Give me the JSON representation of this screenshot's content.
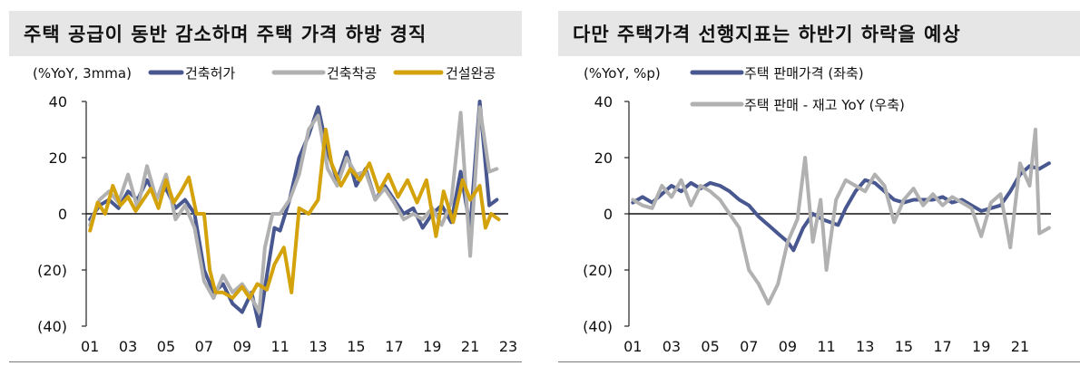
{
  "colors": {
    "navy": "#48578f",
    "gray": "#b1b1b1",
    "gold": "#d4a20a",
    "title_bg": "#e7e6e6"
  },
  "chart_data": [
    {
      "type": "line",
      "title": "주택 공급이 동반 감소하며 주택 가격 하방 경직",
      "unit_label": "(%YoY, 3mma)",
      "yticks": [
        "40",
        "20",
        "0",
        "(20)",
        "(40)"
      ],
      "ylim": [
        -40,
        40
      ],
      "xticks": [
        "01",
        "03",
        "05",
        "07",
        "09",
        "11",
        "13",
        "15",
        "17",
        "19",
        "21",
        "23"
      ],
      "xlim": [
        2000.8,
        2023.0
      ],
      "grid": false,
      "legend_position": "top",
      "series": [
        {
          "name": "건축허가",
          "color": "navy",
          "axis": "left",
          "points": [
            [
              2001.0,
              -2
            ],
            [
              2001.5,
              3
            ],
            [
              2002.0,
              5
            ],
            [
              2002.5,
              2
            ],
            [
              2003.0,
              8
            ],
            [
              2003.5,
              5
            ],
            [
              2004.0,
              12
            ],
            [
              2004.5,
              6
            ],
            [
              2005.0,
              9
            ],
            [
              2005.5,
              2
            ],
            [
              2006.0,
              5
            ],
            [
              2006.5,
              0
            ],
            [
              2007.0,
              -20
            ],
            [
              2007.5,
              -28
            ],
            [
              2008.0,
              -25
            ],
            [
              2008.5,
              -32
            ],
            [
              2009.0,
              -35
            ],
            [
              2009.5,
              -28
            ],
            [
              2009.9,
              -40
            ],
            [
              2010.3,
              -22
            ],
            [
              2010.7,
              -5
            ],
            [
              2011.0,
              -6
            ],
            [
              2011.5,
              5
            ],
            [
              2012.0,
              20
            ],
            [
              2012.5,
              28
            ],
            [
              2013.0,
              38
            ],
            [
              2013.5,
              22
            ],
            [
              2014.0,
              12
            ],
            [
              2014.5,
              22
            ],
            [
              2015.0,
              10
            ],
            [
              2015.5,
              16
            ],
            [
              2016.0,
              5
            ],
            [
              2016.5,
              10
            ],
            [
              2017.0,
              5
            ],
            [
              2017.5,
              0
            ],
            [
              2018.0,
              2
            ],
            [
              2018.5,
              -5
            ],
            [
              2019.0,
              0
            ],
            [
              2019.5,
              3
            ],
            [
              2020.0,
              -3
            ],
            [
              2020.5,
              15
            ],
            [
              2021.0,
              -5
            ],
            [
              2021.5,
              40
            ],
            [
              2022.0,
              3
            ],
            [
              2022.4,
              5
            ]
          ]
        },
        {
          "name": "건축착공",
          "color": "gray",
          "axis": "left",
          "points": [
            [
              2001.0,
              -4
            ],
            [
              2001.5,
              5
            ],
            [
              2002.0,
              8
            ],
            [
              2002.5,
              4
            ],
            [
              2003.0,
              14
            ],
            [
              2003.5,
              2
            ],
            [
              2004.0,
              17
            ],
            [
              2004.5,
              5
            ],
            [
              2005.0,
              14
            ],
            [
              2005.5,
              -2
            ],
            [
              2006.0,
              3
            ],
            [
              2006.5,
              -5
            ],
            [
              2007.0,
              -24
            ],
            [
              2007.5,
              -30
            ],
            [
              2008.0,
              -22
            ],
            [
              2008.5,
              -28
            ],
            [
              2009.0,
              -25
            ],
            [
              2009.5,
              -30
            ],
            [
              2009.9,
              -35
            ],
            [
              2010.2,
              -12
            ],
            [
              2010.6,
              0
            ],
            [
              2011.0,
              0
            ],
            [
              2011.5,
              5
            ],
            [
              2012.0,
              14
            ],
            [
              2012.5,
              30
            ],
            [
              2013.0,
              35
            ],
            [
              2013.5,
              16
            ],
            [
              2014.0,
              10
            ],
            [
              2014.5,
              20
            ],
            [
              2015.0,
              14
            ],
            [
              2015.5,
              15
            ],
            [
              2016.0,
              5
            ],
            [
              2016.5,
              9
            ],
            [
              2017.0,
              4
            ],
            [
              2017.5,
              -2
            ],
            [
              2018.0,
              0
            ],
            [
              2018.5,
              -2
            ],
            [
              2019.0,
              2
            ],
            [
              2019.5,
              -4
            ],
            [
              2020.0,
              4
            ],
            [
              2020.5,
              36
            ],
            [
              2021.0,
              -15
            ],
            [
              2021.5,
              38
            ],
            [
              2022.0,
              15
            ],
            [
              2022.4,
              16
            ]
          ]
        },
        {
          "name": "건설완공",
          "color": "gold",
          "axis": "left",
          "points": [
            [
              2001.0,
              -6
            ],
            [
              2001.4,
              4
            ],
            [
              2001.8,
              0
            ],
            [
              2002.2,
              10
            ],
            [
              2002.6,
              3
            ],
            [
              2003.0,
              6
            ],
            [
              2003.4,
              1
            ],
            [
              2003.8,
              5
            ],
            [
              2004.2,
              9
            ],
            [
              2004.6,
              2
            ],
            [
              2005.0,
              12
            ],
            [
              2005.4,
              4
            ],
            [
              2005.8,
              8
            ],
            [
              2006.2,
              13
            ],
            [
              2006.6,
              0
            ],
            [
              2007.0,
              0
            ],
            [
              2007.3,
              -20
            ],
            [
              2007.6,
              -28
            ],
            [
              2008.0,
              -28
            ],
            [
              2008.5,
              -30
            ],
            [
              2009.0,
              -26
            ],
            [
              2009.4,
              -30
            ],
            [
              2009.8,
              -25
            ],
            [
              2010.3,
              -27
            ],
            [
              2010.7,
              -18
            ],
            [
              2011.2,
              -12
            ],
            [
              2011.6,
              -28
            ],
            [
              2012.0,
              2
            ],
            [
              2012.5,
              0
            ],
            [
              2013.0,
              5
            ],
            [
              2013.4,
              30
            ],
            [
              2013.7,
              18
            ],
            [
              2014.2,
              10
            ],
            [
              2014.7,
              16
            ],
            [
              2015.2,
              12
            ],
            [
              2015.7,
              18
            ],
            [
              2016.2,
              8
            ],
            [
              2016.7,
              14
            ],
            [
              2017.2,
              6
            ],
            [
              2017.7,
              12
            ],
            [
              2018.2,
              4
            ],
            [
              2018.7,
              12
            ],
            [
              2019.2,
              -8
            ],
            [
              2019.6,
              8
            ],
            [
              2020.1,
              -3
            ],
            [
              2020.6,
              12
            ],
            [
              2021.0,
              5
            ],
            [
              2021.5,
              10
            ],
            [
              2021.8,
              -5
            ],
            [
              2022.1,
              0
            ],
            [
              2022.5,
              -2
            ]
          ]
        }
      ]
    },
    {
      "type": "line",
      "title": "다만 주택가격 선행지표는 하반기 하락을 예상",
      "unit_label": "(%YoY, %p)",
      "yticks": [
        "40",
        "20",
        "0",
        "(20)",
        "(40)"
      ],
      "ylim": [
        -40,
        40
      ],
      "xticks": [
        "01",
        "03",
        "05",
        "07",
        "09",
        "11",
        "13",
        "15",
        "17",
        "19",
        "21"
      ],
      "xlim": [
        2000.8,
        2022.6
      ],
      "grid": false,
      "legend_position": "top",
      "series": [
        {
          "name": "주택 판매가격 (좌축)",
          "color": "navy",
          "axis": "left",
          "points": [
            [
              2001.0,
              4
            ],
            [
              2001.5,
              6
            ],
            [
              2002.0,
              4
            ],
            [
              2002.5,
              7
            ],
            [
              2003.0,
              10
            ],
            [
              2003.5,
              8
            ],
            [
              2004.0,
              11
            ],
            [
              2004.5,
              9
            ],
            [
              2005.0,
              11
            ],
            [
              2005.5,
              10
            ],
            [
              2006.0,
              8
            ],
            [
              2006.5,
              5
            ],
            [
              2007.0,
              3
            ],
            [
              2007.5,
              -1
            ],
            [
              2008.0,
              -4
            ],
            [
              2008.5,
              -7
            ],
            [
              2009.0,
              -10
            ],
            [
              2009.3,
              -13
            ],
            [
              2009.8,
              -5
            ],
            [
              2010.3,
              0
            ],
            [
              2010.8,
              -2
            ],
            [
              2011.2,
              -3
            ],
            [
              2011.6,
              -4
            ],
            [
              2012.0,
              2
            ],
            [
              2012.5,
              8
            ],
            [
              2013.0,
              12
            ],
            [
              2013.5,
              11
            ],
            [
              2014.0,
              8
            ],
            [
              2014.5,
              5
            ],
            [
              2015.0,
              4
            ],
            [
              2015.5,
              5
            ],
            [
              2016.0,
              5
            ],
            [
              2016.5,
              5
            ],
            [
              2017.0,
              6
            ],
            [
              2017.5,
              4
            ],
            [
              2018.0,
              5
            ],
            [
              2018.5,
              3
            ],
            [
              2019.0,
              1
            ],
            [
              2019.5,
              2
            ],
            [
              2020.0,
              3
            ],
            [
              2020.5,
              8
            ],
            [
              2021.0,
              14
            ],
            [
              2021.5,
              17
            ],
            [
              2022.0,
              16
            ],
            [
              2022.5,
              18
            ]
          ]
        },
        {
          "name": "주택 판매 - 재고 YoY (우축)",
          "color": "gray",
          "axis": "right",
          "points": [
            [
              2001.0,
              5
            ],
            [
              2001.5,
              3
            ],
            [
              2002.0,
              2
            ],
            [
              2002.5,
              10
            ],
            [
              2003.0,
              6
            ],
            [
              2003.5,
              12
            ],
            [
              2004.0,
              3
            ],
            [
              2004.5,
              10
            ],
            [
              2005.0,
              8
            ],
            [
              2005.5,
              5
            ],
            [
              2006.0,
              0
            ],
            [
              2006.5,
              -5
            ],
            [
              2007.0,
              -20
            ],
            [
              2007.5,
              -25
            ],
            [
              2008.0,
              -32
            ],
            [
              2008.5,
              -25
            ],
            [
              2009.0,
              -10
            ],
            [
              2009.5,
              -2
            ],
            [
              2009.9,
              20
            ],
            [
              2010.3,
              -10
            ],
            [
              2010.7,
              5
            ],
            [
              2011.0,
              -20
            ],
            [
              2011.5,
              5
            ],
            [
              2012.0,
              12
            ],
            [
              2012.5,
              10
            ],
            [
              2013.0,
              8
            ],
            [
              2013.5,
              14
            ],
            [
              2014.0,
              10
            ],
            [
              2014.5,
              -3
            ],
            [
              2015.0,
              5
            ],
            [
              2015.5,
              9
            ],
            [
              2016.0,
              3
            ],
            [
              2016.5,
              7
            ],
            [
              2017.0,
              3
            ],
            [
              2017.5,
              6
            ],
            [
              2018.0,
              4
            ],
            [
              2018.5,
              2
            ],
            [
              2019.0,
              -8
            ],
            [
              2019.5,
              4
            ],
            [
              2020.0,
              7
            ],
            [
              2020.5,
              -12
            ],
            [
              2021.0,
              18
            ],
            [
              2021.5,
              10
            ],
            [
              2021.8,
              30
            ],
            [
              2022.0,
              -7
            ],
            [
              2022.5,
              -5
            ]
          ]
        }
      ]
    }
  ]
}
